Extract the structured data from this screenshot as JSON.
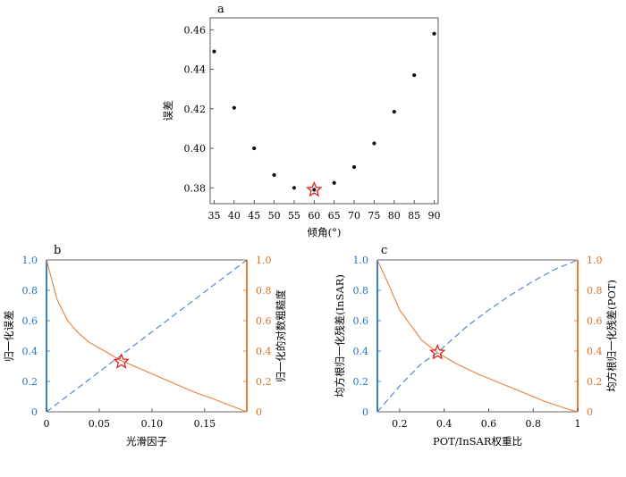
{
  "chart_data": [
    {
      "id": "a",
      "type": "scatter",
      "panel_label": "a",
      "xlabel": "倾角(°)",
      "ylabel": "误差",
      "xlim": [
        34,
        91
      ],
      "ylim": [
        0.372,
        0.466
      ],
      "x_ticks": [
        35,
        40,
        45,
        50,
        55,
        60,
        65,
        70,
        75,
        80,
        85,
        90
      ],
      "y_ticks": [
        0.38,
        0.4,
        0.42,
        0.44,
        0.46
      ],
      "y_tick_labels": [
        "0.38",
        "0.40",
        "0.42",
        "0.44",
        "0.46"
      ],
      "points": [
        {
          "x": 35,
          "y": 0.449
        },
        {
          "x": 40,
          "y": 0.4205
        },
        {
          "x": 45,
          "y": 0.4
        },
        {
          "x": 50,
          "y": 0.3865
        },
        {
          "x": 55,
          "y": 0.38
        },
        {
          "x": 60,
          "y": 0.379
        },
        {
          "x": 65,
          "y": 0.3825
        },
        {
          "x": 70,
          "y": 0.3905
        },
        {
          "x": 75,
          "y": 0.4025
        },
        {
          "x": 80,
          "y": 0.4185
        },
        {
          "x": 85,
          "y": 0.437
        },
        {
          "x": 90,
          "y": 0.458
        }
      ],
      "optimum": {
        "x": 60,
        "y": 0.379
      },
      "grid": false
    },
    {
      "id": "b",
      "type": "line",
      "panel_label": "b",
      "xlabel": "光滑因子",
      "ylabel_left": "归一化误差",
      "ylabel_right": "归一化的对数粗糙度",
      "xlim": [
        0,
        0.19
      ],
      "ylim": [
        0,
        1
      ],
      "x_ticks": [
        0,
        0.05,
        0.1,
        0.15
      ],
      "x_tick_labels": [
        "0",
        "0.05",
        "0.10",
        "0.15"
      ],
      "y_ticks": [
        0,
        0.2,
        0.4,
        0.6,
        0.8,
        1.0
      ],
      "y_tick_labels": [
        "0",
        "0.2",
        "0.4",
        "0.6",
        "0.8",
        "1.0"
      ],
      "left_axis_color": "#1f73c4",
      "right_axis_color": "#e07020",
      "series": [
        {
          "axis": "left",
          "color": "#4a7fd0",
          "style": "dashed",
          "x": [
            0,
            0.19
          ],
          "y": [
            0,
            1
          ]
        },
        {
          "axis": "right",
          "color": "#e8803a",
          "style": "solid",
          "x": [
            0,
            0.005,
            0.01,
            0.02,
            0.03,
            0.04,
            0.05,
            0.06,
            0.07,
            0.08,
            0.1,
            0.12,
            0.14,
            0.16,
            0.19
          ],
          "y": [
            1.0,
            0.87,
            0.74,
            0.6,
            0.52,
            0.46,
            0.42,
            0.38,
            0.34,
            0.31,
            0.25,
            0.19,
            0.13,
            0.08,
            0.0
          ]
        }
      ],
      "optimum": {
        "x": 0.071,
        "y": 0.33
      },
      "grid": false
    },
    {
      "id": "c",
      "type": "line",
      "panel_label": "c",
      "xlabel": "POT/InSAR权重比",
      "ylabel_left": "均方根归一化残差(InSAR)",
      "ylabel_right": "均方根归一化残差(POT)",
      "xlim": [
        0.1,
        1.0
      ],
      "ylim": [
        0,
        1
      ],
      "x_ticks": [
        0.2,
        0.4,
        0.6,
        0.8,
        1.0
      ],
      "x_tick_labels": [
        "0.2",
        "0.4",
        "0.6",
        "0.8",
        "1"
      ],
      "y_ticks": [
        0,
        0.2,
        0.4,
        0.6,
        0.8,
        1.0
      ],
      "y_tick_labels": [
        "0",
        "0.2",
        "0.4",
        "0.6",
        "0.8",
        "1.0"
      ],
      "left_axis_color": "#1f73c4",
      "right_axis_color": "#e07020",
      "series": [
        {
          "axis": "left",
          "color": "#4a7fd0",
          "style": "dashed",
          "x": [
            0.1,
            0.2,
            0.3,
            0.37,
            0.5,
            0.6,
            0.7,
            0.8,
            0.9,
            1.0
          ],
          "y": [
            0.0,
            0.17,
            0.32,
            0.39,
            0.56,
            0.67,
            0.77,
            0.86,
            0.94,
            1.0
          ]
        },
        {
          "axis": "right",
          "color": "#e8803a",
          "style": "solid",
          "x": [
            0.1,
            0.15,
            0.2,
            0.25,
            0.3,
            0.37,
            0.45,
            0.55,
            0.65,
            0.75,
            0.85,
            0.95,
            1.0
          ],
          "y": [
            1.0,
            0.84,
            0.67,
            0.57,
            0.47,
            0.39,
            0.32,
            0.25,
            0.19,
            0.13,
            0.07,
            0.02,
            0.0
          ]
        }
      ],
      "optimum": {
        "x": 0.37,
        "y": 0.39
      },
      "grid": false
    }
  ]
}
